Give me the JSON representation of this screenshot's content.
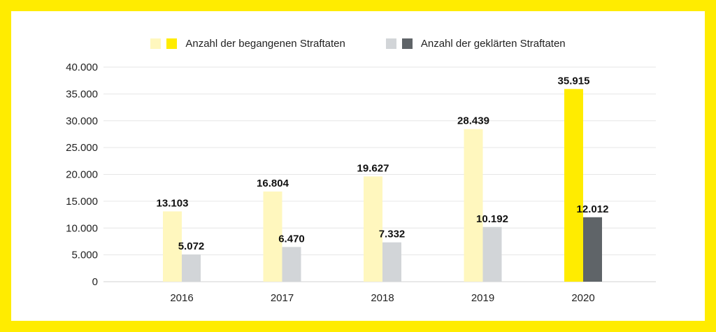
{
  "colors": {
    "frame": "#FFEC00",
    "committed_light": "#FFF7BE",
    "committed_highlight": "#FFEC00",
    "solved_light": "#D2D5D8",
    "solved_highlight": "#5F6468",
    "grid": "#E6E6E6"
  },
  "legend": {
    "committed_label": "Anzahl der begangenen Straftaten",
    "solved_label": "Anzahl der geklärten Straftaten"
  },
  "chart_data": {
    "type": "bar",
    "categories": [
      "2016",
      "2017",
      "2018",
      "2019",
      "2020"
    ],
    "series": [
      {
        "name": "Anzahl der begangenen Straftaten",
        "values": [
          13103,
          16804,
          19627,
          28439,
          35915
        ],
        "labels": [
          "13.103",
          "16.804",
          "19.627",
          "28.439",
          "35.915"
        ]
      },
      {
        "name": "Anzahl der geklärten Straftaten",
        "values": [
          5072,
          6470,
          7332,
          10192,
          12012
        ],
        "labels": [
          "5.072",
          "6.470",
          "7.332",
          "10.192",
          "12.012"
        ]
      }
    ],
    "highlighted_category": "2020",
    "ylim": [
      0,
      40000
    ],
    "yticks": [
      0,
      5000,
      10000,
      15000,
      20000,
      25000,
      30000,
      35000,
      40000
    ],
    "ytick_labels": [
      "0",
      "5.000",
      "10.000",
      "15.000",
      "20.000",
      "25.000",
      "30.000",
      "35.000",
      "40.000"
    ],
    "grid": true,
    "legend_position": "top-center"
  }
}
